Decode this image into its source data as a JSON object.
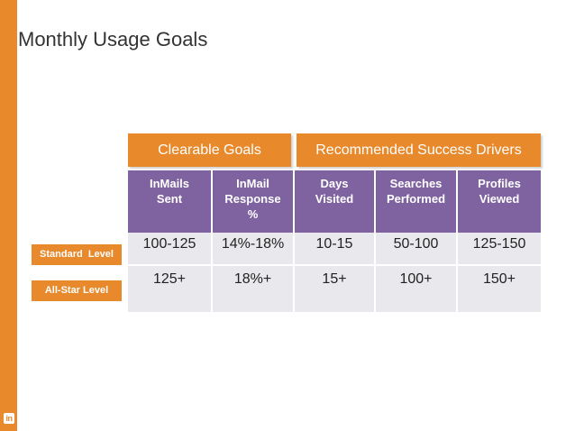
{
  "slide": {
    "title": "Monthly Usage Goals",
    "logo_text": "in",
    "accent_color": "#e8892b",
    "header_color": "#7f63a1",
    "row_color": "#e9e9ed"
  },
  "groups": {
    "clearable": "Clearable Goals",
    "recommended": "Recommended Success Drivers"
  },
  "columns": [
    {
      "line1": "InMails",
      "line2": "Sent",
      "line3": ""
    },
    {
      "line1": "InMail",
      "line2": "Response",
      "line3": "%"
    },
    {
      "line1": "Days",
      "line2": "Visited",
      "line3": ""
    },
    {
      "line1": "Searches",
      "line2": "Performed",
      "line3": ""
    },
    {
      "line1": "Profiles",
      "line2": "Viewed",
      "line3": ""
    }
  ],
  "levels": [
    {
      "label": "Standard  Level",
      "values": [
        "100-125",
        "14%-18%",
        "10-15",
        "50-100",
        "125-150"
      ]
    },
    {
      "label": "All-Star Level",
      "values": [
        "125+",
        "18%+",
        "15+",
        "100+",
        "150+"
      ]
    }
  ]
}
